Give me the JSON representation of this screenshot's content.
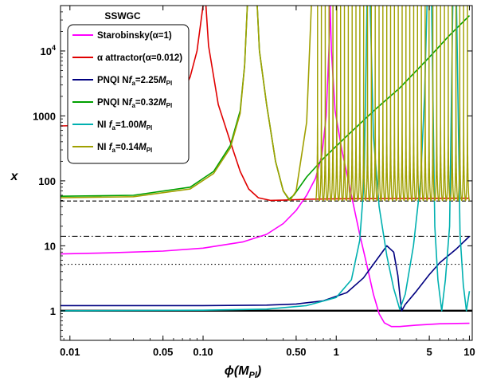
{
  "chart_data": {
    "type": "line",
    "xlabel": "ϕ(M_Pl)",
    "ylabel": "x",
    "xscale": "log",
    "yscale": "log",
    "xlim": [
      0.0085,
      10.5
    ],
    "ylim": [
      0.35,
      50000
    ],
    "x_ticks": [
      {
        "value": 0.01,
        "label": "0.01"
      },
      {
        "value": 0.05,
        "label": "0.05"
      },
      {
        "value": 0.1,
        "label": "0.10"
      },
      {
        "value": 0.5,
        "label": "0.50"
      },
      {
        "value": 1,
        "label": "1"
      },
      {
        "value": 5,
        "label": "5"
      },
      {
        "value": 10,
        "label": "10"
      }
    ],
    "y_ticks": [
      {
        "value": 1,
        "label": "1"
      },
      {
        "value": 10,
        "label": "10"
      },
      {
        "value": 100,
        "label": "100"
      },
      {
        "value": 1000,
        "label": "1000"
      },
      {
        "value": 10000,
        "label": "10^4"
      }
    ],
    "legend": {
      "title": "SSWGC",
      "position": "top-left",
      "entries": [
        {
          "label": "Starobinsky(α=1)",
          "color": "#ff00ff"
        },
        {
          "label": "α attractor(α=0.012)",
          "color": "#e00000"
        },
        {
          "label": "PNQI Nf_a=2.25M_Pl",
          "color": "#000080"
        },
        {
          "label": "PNQI Nf_a=0.32M_Pl",
          "color": "#00a000"
        },
        {
          "label": "NI f_a=1.00M_Pl",
          "color": "#00b0b0"
        },
        {
          "label": "NI f_a=0.14M_Pl",
          "color": "#a0a000"
        }
      ]
    },
    "reference_lines": [
      {
        "y": 1,
        "style": "solid-thick",
        "color": "#000000"
      },
      {
        "y": 5.2,
        "style": "dotted",
        "color": "#000000"
      },
      {
        "y": 14,
        "style": "dashdot",
        "color": "#000000"
      },
      {
        "y": 49,
        "style": "dashed",
        "color": "#000000"
      }
    ],
    "series": [
      {
        "name": "Starobinsky(α=1)",
        "color": "#ff00ff",
        "points": [
          [
            0.0085,
            7.5
          ],
          [
            0.01,
            7.55
          ],
          [
            0.02,
            7.8
          ],
          [
            0.05,
            8.3
          ],
          [
            0.1,
            9.2
          ],
          [
            0.2,
            11.5
          ],
          [
            0.3,
            15
          ],
          [
            0.4,
            22
          ],
          [
            0.5,
            35
          ],
          [
            0.6,
            60
          ],
          [
            0.7,
            110
          ],
          [
            0.78,
            250
          ],
          [
            0.84,
            1000
          ],
          [
            0.88,
            10000
          ],
          [
            0.9,
            50000
          ]
        ],
        "points_b": [
          [
            0.9,
            50000
          ],
          [
            0.92,
            10000
          ],
          [
            0.98,
            1200
          ],
          [
            1.1,
            300
          ],
          [
            1.3,
            60
          ],
          [
            1.5,
            15
          ],
          [
            1.7,
            5
          ],
          [
            1.9,
            1.8
          ],
          [
            2.1,
            0.9
          ],
          [
            2.3,
            0.65
          ],
          [
            2.6,
            0.57
          ],
          [
            3,
            0.57
          ],
          [
            4,
            0.6
          ],
          [
            6,
            0.63
          ],
          [
            10,
            0.64
          ]
        ]
      },
      {
        "name": "α attractor(α=0.012)",
        "color": "#e00000",
        "points": [
          [
            0.0085,
            700
          ],
          [
            0.015,
            720
          ],
          [
            0.025,
            790
          ],
          [
            0.04,
            950
          ],
          [
            0.055,
            1300
          ],
          [
            0.07,
            2200
          ],
          [
            0.08,
            4000
          ],
          [
            0.09,
            10000
          ],
          [
            0.1,
            50000
          ]
        ],
        "points_b": [
          [
            0.105,
            50000
          ],
          [
            0.11,
            12000
          ],
          [
            0.13,
            1500
          ],
          [
            0.16,
            400
          ],
          [
            0.19,
            140
          ],
          [
            0.22,
            75
          ],
          [
            0.26,
            55
          ],
          [
            0.32,
            50
          ],
          [
            0.4,
            50.5
          ],
          [
            0.6,
            52
          ],
          [
            1,
            53
          ],
          [
            3,
            53.5
          ],
          [
            10,
            54
          ]
        ]
      },
      {
        "name": "PNQI Nf_a=2.25M_Pl",
        "color": "#000080",
        "points": [
          [
            0.0085,
            1.2
          ],
          [
            0.05,
            1.2
          ],
          [
            0.1,
            1.2
          ],
          [
            0.3,
            1.22
          ],
          [
            0.5,
            1.27
          ],
          [
            0.8,
            1.42
          ],
          [
            1.2,
            1.9
          ],
          [
            1.6,
            3.2
          ],
          [
            2,
            6
          ],
          [
            2.4,
            10
          ],
          [
            2.7,
            8
          ],
          [
            2.9,
            3.5
          ],
          [
            3.0,
            1.8
          ],
          [
            3.1,
            1.0
          ],
          [
            3.3,
            1.25
          ],
          [
            4,
            2
          ],
          [
            5,
            3.6
          ],
          [
            6,
            5.5
          ],
          [
            8,
            9
          ],
          [
            10,
            14
          ]
        ]
      },
      {
        "name": "PNQI Nf_a=0.32M_Pl",
        "color": "#00a000",
        "points": [
          [
            0.0085,
            58
          ],
          [
            0.03,
            60
          ],
          [
            0.08,
            80
          ],
          [
            0.12,
            140
          ],
          [
            0.16,
            350
          ],
          [
            0.19,
            1200
          ],
          [
            0.205,
            6000
          ],
          [
            0.215,
            50000
          ]
        ],
        "points_b": [
          [
            0.255,
            50000
          ],
          [
            0.265,
            10000
          ],
          [
            0.3,
            1500
          ],
          [
            0.35,
            200
          ],
          [
            0.4,
            70
          ],
          [
            0.44,
            52
          ],
          [
            0.48,
            60
          ],
          [
            0.6,
            115
          ],
          [
            0.8,
            220
          ],
          [
            1.2,
            490
          ],
          [
            2,
            1300
          ],
          [
            3,
            2700
          ],
          [
            5,
            8000
          ],
          [
            7,
            17000
          ],
          [
            10,
            35000
          ]
        ]
      },
      {
        "name": "NI f_a=1.00M_Pl",
        "color": "#00b0b0",
        "points": [
          [
            0.0085,
            1.0
          ],
          [
            0.1,
            1.02
          ],
          [
            0.3,
            1.06
          ],
          [
            0.6,
            1.2
          ],
          [
            1,
            1.6
          ],
          [
            1.3,
            3
          ],
          [
            1.5,
            12
          ],
          [
            1.62,
            100
          ],
          [
            1.7,
            50000
          ]
        ],
        "points_b": [
          [
            1.8,
            50000
          ],
          [
            1.9,
            500
          ],
          [
            2.1,
            40
          ],
          [
            2.4,
            7
          ],
          [
            2.7,
            2.2
          ],
          [
            3.0,
            1.05
          ],
          [
            3.3,
            1.8
          ],
          [
            3.8,
            10
          ],
          [
            4.3,
            100
          ],
          [
            4.6,
            2000
          ],
          [
            4.8,
            50000
          ]
        ],
        "points_c": [
          [
            5.2,
            50000
          ],
          [
            5.5,
            20
          ],
          [
            5.8,
            3
          ],
          [
            6.2,
            1.0
          ],
          [
            6.6,
            3
          ],
          [
            7.1,
            20
          ],
          [
            7.5,
            50000
          ]
        ],
        "points_d": [
          [
            8.0,
            50000
          ],
          [
            8.5,
            15
          ],
          [
            9.0,
            2.5
          ],
          [
            9.5,
            1.0
          ],
          [
            10,
            2
          ]
        ]
      },
      {
        "name": "NI f_a=0.14M_Pl",
        "color": "#a0a000",
        "points": [
          [
            0.0085,
            55
          ],
          [
            0.03,
            57
          ],
          [
            0.08,
            75
          ],
          [
            0.12,
            130
          ],
          [
            0.16,
            320
          ],
          [
            0.19,
            1100
          ],
          [
            0.205,
            6000
          ],
          [
            0.215,
            50000
          ]
        ],
        "points_b": [
          [
            0.255,
            50000
          ],
          [
            0.265,
            10000
          ],
          [
            0.3,
            1500
          ],
          [
            0.35,
            200
          ],
          [
            0.4,
            70
          ],
          [
            0.45,
            50
          ],
          [
            0.5,
            70
          ],
          [
            0.6,
            800
          ],
          [
            0.65,
            50000
          ]
        ],
        "oscillation": {
          "start": 0.7,
          "end": 10,
          "peaks": 40,
          "min": 50,
          "max": 50000
        }
      }
    ]
  }
}
